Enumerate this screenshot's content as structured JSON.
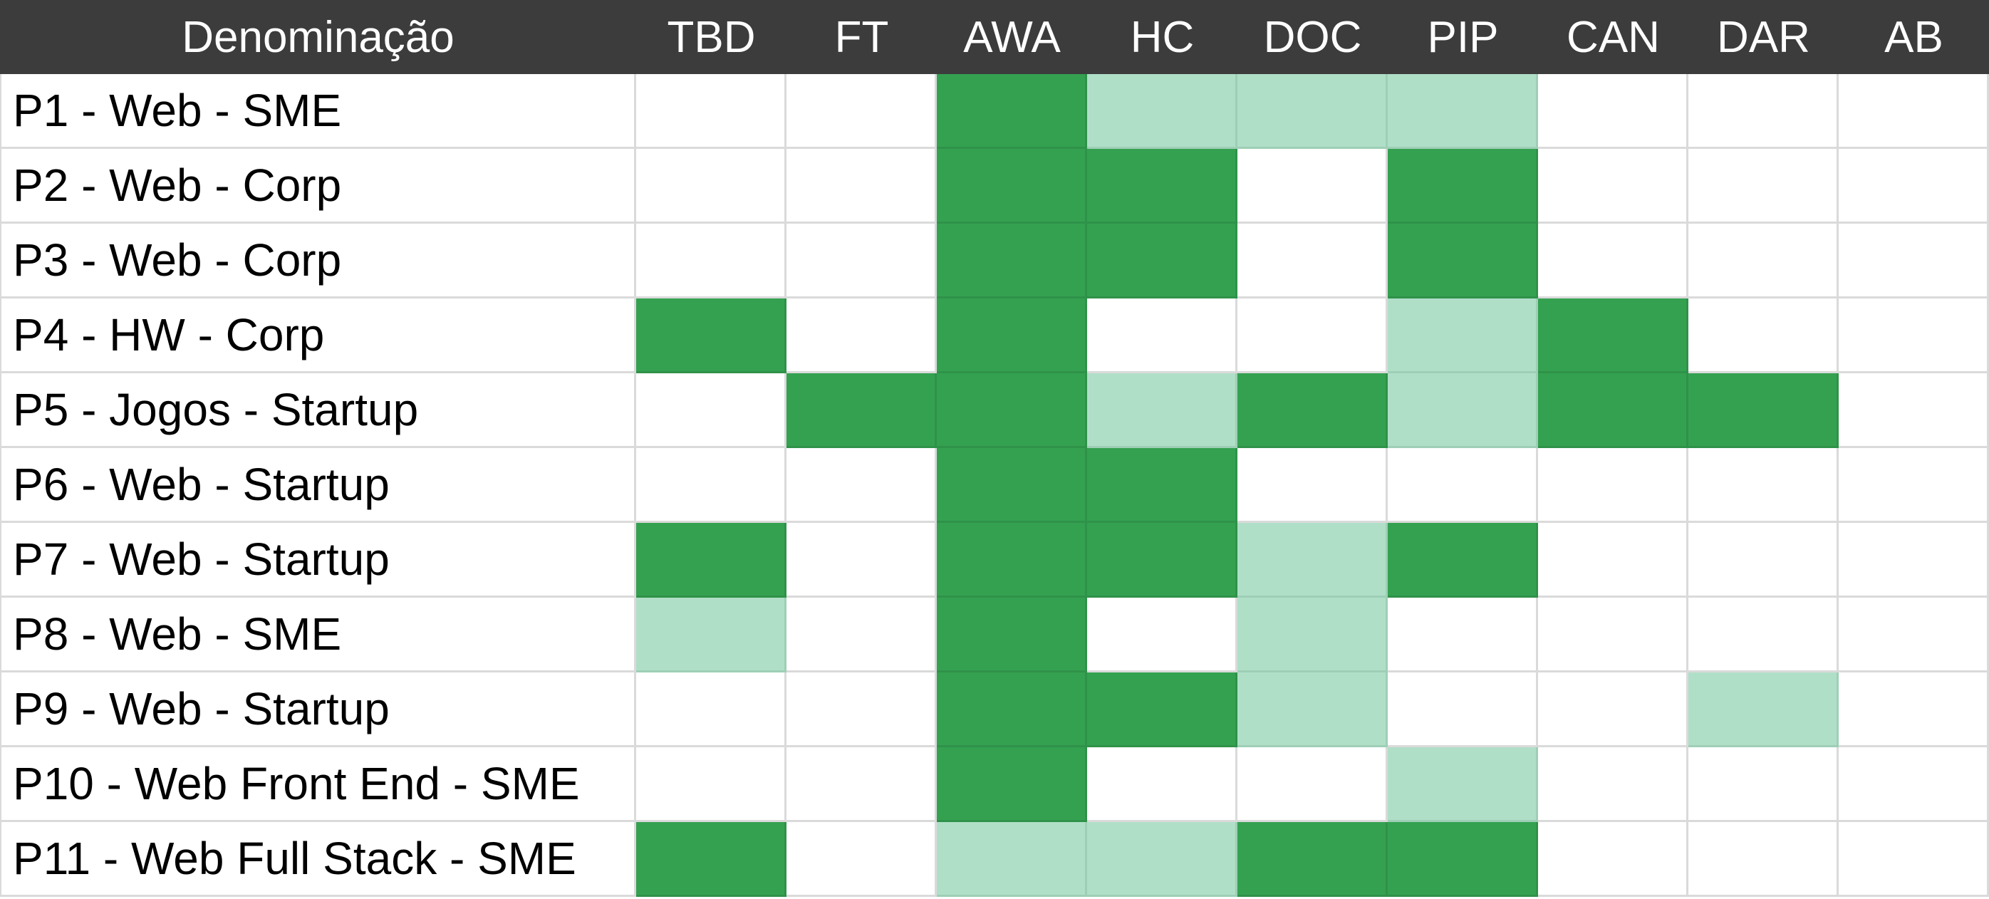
{
  "sheet": {
    "header": {
      "name_label": "Denominação",
      "columns": [
        "TBD",
        "FT",
        "AWA",
        "HC",
        "DOC",
        "PIP",
        "CAN",
        "DAR",
        "AB"
      ]
    },
    "legend_colors": {
      "none": "#ffffff",
      "light": "#b0dfc8",
      "strong": "#34a151"
    },
    "rows": [
      {
        "name": "P1 - Web - SME",
        "values": [
          0,
          0,
          2,
          1,
          1,
          1,
          0,
          0,
          0
        ]
      },
      {
        "name": "P2 - Web - Corp",
        "values": [
          0,
          0,
          2,
          2,
          0,
          2,
          0,
          0,
          0
        ]
      },
      {
        "name": "P3 - Web - Corp",
        "values": [
          0,
          0,
          2,
          2,
          0,
          2,
          0,
          0,
          0
        ]
      },
      {
        "name": "P4 - HW - Corp",
        "values": [
          2,
          0,
          2,
          0,
          0,
          1,
          2,
          0,
          0
        ]
      },
      {
        "name": "P5 - Jogos - Startup",
        "values": [
          0,
          2,
          2,
          1,
          2,
          1,
          2,
          2,
          0
        ]
      },
      {
        "name": "P6 - Web - Startup",
        "values": [
          0,
          0,
          2,
          2,
          0,
          0,
          0,
          0,
          0
        ]
      },
      {
        "name": "P7 - Web - Startup",
        "values": [
          2,
          0,
          2,
          2,
          1,
          2,
          0,
          0,
          0
        ]
      },
      {
        "name": "P8 - Web - SME",
        "values": [
          1,
          0,
          2,
          0,
          1,
          0,
          0,
          0,
          0
        ]
      },
      {
        "name": "P9 - Web - Startup",
        "values": [
          0,
          0,
          2,
          2,
          1,
          0,
          0,
          1,
          0
        ]
      },
      {
        "name": "P10 - Web Front End - SME",
        "values": [
          0,
          0,
          2,
          0,
          0,
          1,
          0,
          0,
          0
        ]
      },
      {
        "name": "P11 - Web Full Stack - SME",
        "values": [
          2,
          0,
          1,
          1,
          2,
          2,
          0,
          0,
          0
        ]
      }
    ]
  }
}
